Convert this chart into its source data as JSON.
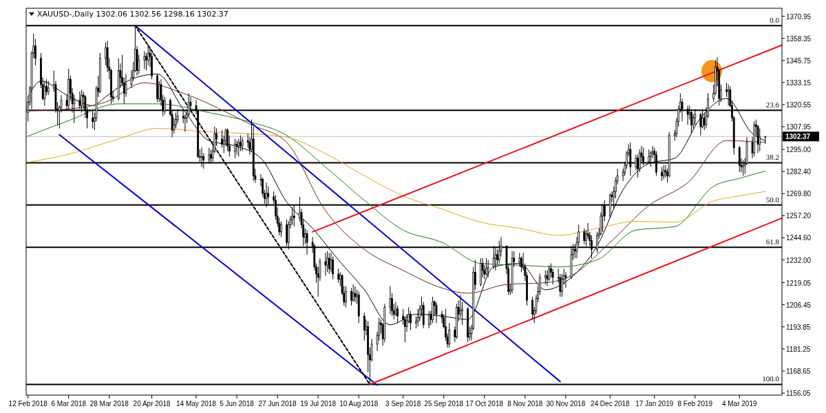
{
  "chart_data": {
    "type": "candlestick",
    "title": "XAUUSD-,Daily  1302.06 1302.56 1298.16 1302.37",
    "x": [
      "2018-02-12",
      "2018-02-13",
      "2018-02-14",
      "2018-02-15",
      "2018-02-16",
      "2018-02-19",
      "2018-02-20",
      "2018-02-21",
      "2018-02-22",
      "2018-02-23",
      "2018-02-26",
      "2018-02-27",
      "2018-02-28",
      "2018-03-01",
      "2018-03-02",
      "2018-03-05",
      "2018-03-06",
      "2018-03-07",
      "2018-03-08",
      "2018-03-09",
      "2018-03-12",
      "2018-03-13",
      "2018-03-14",
      "2018-03-15",
      "2018-03-16",
      "2018-03-19",
      "2018-03-20",
      "2018-03-21",
      "2018-03-22",
      "2018-03-23",
      "2018-03-26",
      "2018-03-27",
      "2018-03-28",
      "2018-03-29",
      "2018-03-30",
      "2018-04-02",
      "2018-04-03",
      "2018-04-04",
      "2018-04-05",
      "2018-04-06",
      "2018-04-09",
      "2018-04-10",
      "2018-04-11",
      "2018-04-12",
      "2018-04-13",
      "2018-04-16",
      "2018-04-17",
      "2018-04-18",
      "2018-04-19",
      "2018-04-20",
      "2018-04-23",
      "2018-04-24",
      "2018-04-25",
      "2018-04-26",
      "2018-04-27",
      "2018-04-30",
      "2018-05-01",
      "2018-05-02",
      "2018-05-03",
      "2018-05-04",
      "2018-05-07",
      "2018-05-08",
      "2018-05-09",
      "2018-05-10",
      "2018-05-11",
      "2018-05-14",
      "2018-05-15",
      "2018-05-16",
      "2018-05-17",
      "2018-05-18",
      "2018-05-21",
      "2018-05-22",
      "2018-05-23",
      "2018-05-24",
      "2018-05-25",
      "2018-05-28",
      "2018-05-29",
      "2018-05-30",
      "2018-05-31",
      "2018-06-01",
      "2018-06-04",
      "2018-06-05",
      "2018-06-06",
      "2018-06-07",
      "2018-06-08",
      "2018-06-11",
      "2018-06-12",
      "2018-06-13",
      "2018-06-14",
      "2018-06-15",
      "2018-06-18",
      "2018-06-19",
      "2018-06-20",
      "2018-06-21",
      "2018-06-22",
      "2018-06-25",
      "2018-06-26",
      "2018-06-27",
      "2018-06-28",
      "2018-06-29",
      "2018-07-02",
      "2018-07-03",
      "2018-07-04",
      "2018-07-05",
      "2018-07-06",
      "2018-07-09",
      "2018-07-10",
      "2018-07-11",
      "2018-07-12",
      "2018-07-13",
      "2018-07-16",
      "2018-07-17",
      "2018-07-18",
      "2018-07-19",
      "2018-07-20",
      "2018-07-23",
      "2018-07-24",
      "2018-07-25",
      "2018-07-26",
      "2018-07-27",
      "2018-07-30",
      "2018-07-31",
      "2018-08-01",
      "2018-08-02",
      "2018-08-03",
      "2018-08-06",
      "2018-08-07",
      "2018-08-08",
      "2018-08-09",
      "2018-08-10",
      "2018-08-13",
      "2018-08-14",
      "2018-08-15",
      "2018-08-16",
      "2018-08-17",
      "2018-08-20",
      "2018-08-21",
      "2018-08-22",
      "2018-08-23",
      "2018-08-24",
      "2018-08-27",
      "2018-08-28",
      "2018-08-29",
      "2018-08-30",
      "2018-08-31",
      "2018-09-03",
      "2018-09-04",
      "2018-09-05",
      "2018-09-06",
      "2018-09-07",
      "2018-09-10",
      "2018-09-11",
      "2018-09-12",
      "2018-09-13",
      "2018-09-14",
      "2018-09-17",
      "2018-09-18",
      "2018-09-19",
      "2018-09-20",
      "2018-09-21",
      "2018-09-24",
      "2018-09-25",
      "2018-09-26",
      "2018-09-27",
      "2018-09-28",
      "2018-10-01",
      "2018-10-02",
      "2018-10-03",
      "2018-10-04",
      "2018-10-05",
      "2018-10-08",
      "2018-10-09",
      "2018-10-10",
      "2018-10-11",
      "2018-10-12",
      "2018-10-15",
      "2018-10-16",
      "2018-10-17",
      "2018-10-18",
      "2018-10-19",
      "2018-10-22",
      "2018-10-23",
      "2018-10-24",
      "2018-10-25",
      "2018-10-26",
      "2018-10-29",
      "2018-10-30",
      "2018-10-31",
      "2018-11-01",
      "2018-11-02",
      "2018-11-05",
      "2018-11-06",
      "2018-11-07",
      "2018-11-08",
      "2018-11-09",
      "2018-11-12",
      "2018-11-13",
      "2018-11-14",
      "2018-11-15",
      "2018-11-16",
      "2018-11-19",
      "2018-11-20",
      "2018-11-21",
      "2018-11-22",
      "2018-11-23",
      "2018-11-26",
      "2018-11-27",
      "2018-11-28",
      "2018-11-29",
      "2018-11-30",
      "2018-12-03",
      "2018-12-04",
      "2018-12-05",
      "2018-12-06",
      "2018-12-07",
      "2018-12-10",
      "2018-12-11",
      "2018-12-12",
      "2018-12-13",
      "2018-12-14",
      "2018-12-17",
      "2018-12-18",
      "2018-12-19",
      "2018-12-20",
      "2018-12-21",
      "2018-12-24",
      "2018-12-25",
      "2018-12-26",
      "2018-12-27",
      "2018-12-28",
      "2018-12-31",
      "2019-01-01",
      "2019-01-02",
      "2019-01-03",
      "2019-01-04",
      "2019-01-07",
      "2019-01-08",
      "2019-01-09",
      "2019-01-10",
      "2019-01-11",
      "2019-01-14",
      "2019-01-15",
      "2019-01-16",
      "2019-01-17",
      "2019-01-18",
      "2019-01-21",
      "2019-01-22",
      "2019-01-23",
      "2019-01-24",
      "2019-01-25",
      "2019-01-28",
      "2019-01-29",
      "2019-01-30",
      "2019-01-31",
      "2019-02-01",
      "2019-02-04",
      "2019-02-05",
      "2019-02-06",
      "2019-02-07",
      "2019-02-08",
      "2019-02-11",
      "2019-02-12",
      "2019-02-13",
      "2019-02-14",
      "2019-02-15",
      "2019-02-18",
      "2019-02-19",
      "2019-02-20",
      "2019-02-21",
      "2019-02-22",
      "2019-02-25",
      "2019-02-26",
      "2019-02-27",
      "2019-02-28",
      "2019-03-01",
      "2019-03-04",
      "2019-03-05",
      "2019-03-06",
      "2019-03-07",
      "2019-03-08",
      "2019-03-11",
      "2019-03-12",
      "2019-03-13",
      "2019-03-14",
      "2019-03-15",
      "2019-03-18"
    ],
    "ohlc": [
      [
        1316,
        1325,
        1311,
        1322
      ],
      [
        1322,
        1331,
        1320,
        1330
      ],
      [
        1330,
        1351,
        1318,
        1350
      ],
      [
        1350,
        1361,
        1347,
        1354
      ],
      [
        1354,
        1358,
        1343,
        1347
      ],
      [
        1347,
        1350,
        1330,
        1332
      ],
      [
        1332,
        1336,
        1323,
        1324
      ],
      [
        1324,
        1334,
        1320,
        1331
      ],
      [
        1331,
        1335,
        1326,
        1328
      ],
      [
        1328,
        1334,
        1326,
        1330
      ],
      [
        1330,
        1340,
        1328,
        1332
      ],
      [
        1332,
        1334,
        1316,
        1318
      ],
      [
        1318,
        1322,
        1309,
        1317
      ],
      [
        1317,
        1320,
        1307,
        1319
      ],
      [
        1319,
        1326,
        1316,
        1323
      ],
      [
        1323,
        1326,
        1317,
        1320
      ],
      [
        1320,
        1341,
        1318,
        1335
      ],
      [
        1335,
        1337,
        1323,
        1327
      ],
      [
        1327,
        1330,
        1316,
        1321
      ],
      [
        1321,
        1326,
        1310,
        1323
      ],
      [
        1323,
        1328,
        1318,
        1320
      ],
      [
        1320,
        1329,
        1316,
        1326
      ],
      [
        1326,
        1328,
        1318,
        1325
      ],
      [
        1325,
        1326,
        1313,
        1317
      ],
      [
        1317,
        1319,
        1307,
        1313
      ],
      [
        1313,
        1318,
        1307,
        1311
      ],
      [
        1311,
        1316,
        1306,
        1313
      ],
      [
        1313,
        1331,
        1311,
        1330
      ],
      [
        1330,
        1337,
        1325,
        1328
      ],
      [
        1328,
        1350,
        1327,
        1347
      ],
      [
        1347,
        1356,
        1343,
        1353
      ],
      [
        1353,
        1357,
        1339,
        1342
      ],
      [
        1342,
        1347,
        1335,
        1340
      ],
      [
        1340,
        1341,
        1321,
        1325
      ],
      [
        1325,
        1328,
        1322,
        1324
      ],
      [
        1324,
        1347,
        1323,
        1340
      ],
      [
        1340,
        1344,
        1330,
        1336
      ],
      [
        1336,
        1349,
        1331,
        1333
      ],
      [
        1333,
        1336,
        1321,
        1327
      ],
      [
        1327,
        1338,
        1325,
        1332
      ],
      [
        1332,
        1340,
        1330,
        1336
      ],
      [
        1336,
        1345,
        1334,
        1340
      ],
      [
        1340,
        1365.6,
        1339,
        1352
      ],
      [
        1352,
        1354,
        1337,
        1340
      ],
      [
        1340,
        1349,
        1338,
        1346
      ],
      [
        1346,
        1351,
        1341,
        1348
      ],
      [
        1348,
        1350,
        1340,
        1346
      ],
      [
        1346,
        1355,
        1343,
        1350
      ],
      [
        1350,
        1353,
        1342,
        1348
      ],
      [
        1348,
        1350,
        1335,
        1337
      ],
      [
        1337,
        1338,
        1322,
        1324
      ],
      [
        1324,
        1334,
        1322,
        1332
      ],
      [
        1332,
        1335,
        1320,
        1323
      ],
      [
        1323,
        1326,
        1314,
        1317
      ],
      [
        1317,
        1325,
        1315,
        1323
      ],
      [
        1323,
        1324,
        1314,
        1315
      ],
      [
        1315,
        1317,
        1302,
        1306
      ],
      [
        1306,
        1313,
        1304,
        1309
      ],
      [
        1309,
        1316,
        1307,
        1312
      ],
      [
        1312,
        1318,
        1310,
        1314
      ],
      [
        1314,
        1318,
        1310,
        1313
      ],
      [
        1313,
        1315,
        1305,
        1313
      ],
      [
        1313,
        1318,
        1310,
        1315
      ],
      [
        1315,
        1327,
        1314,
        1322
      ],
      [
        1322,
        1325,
        1317,
        1320
      ],
      [
        1320,
        1323,
        1315,
        1317
      ],
      [
        1317,
        1318,
        1290,
        1291
      ],
      [
        1291,
        1295,
        1288,
        1291
      ],
      [
        1291,
        1296,
        1285,
        1291
      ],
      [
        1291,
        1293,
        1284,
        1289
      ],
      [
        1289,
        1296,
        1287,
        1292
      ],
      [
        1292,
        1295,
        1287,
        1290
      ],
      [
        1290,
        1297,
        1288,
        1294
      ],
      [
        1294,
        1308,
        1293,
        1304
      ],
      [
        1304,
        1307,
        1297,
        1301
      ],
      [
        1301,
        1306,
        1296,
        1298
      ],
      [
        1298,
        1303,
        1293,
        1300
      ],
      [
        1300,
        1307,
        1297,
        1306
      ],
      [
        1306,
        1307,
        1294,
        1297
      ],
      [
        1297,
        1303,
        1291,
        1294
      ],
      [
        1294,
        1301,
        1290,
        1298
      ],
      [
        1298,
        1300,
        1292,
        1297
      ],
      [
        1297,
        1301,
        1291,
        1299
      ],
      [
        1299,
        1303,
        1294,
        1297
      ],
      [
        1297,
        1302,
        1294,
        1300
      ],
      [
        1300,
        1304,
        1296,
        1299
      ],
      [
        1299,
        1302,
        1292,
        1295
      ],
      [
        1295,
        1312,
        1294,
        1301
      ],
      [
        1301,
        1308,
        1277,
        1280
      ],
      [
        1280,
        1284,
        1276,
        1278
      ],
      [
        1278,
        1281,
        1274,
        1278
      ],
      [
        1278,
        1279,
        1268,
        1270
      ],
      [
        1270,
        1272,
        1264,
        1267
      ],
      [
        1267,
        1276,
        1262,
        1270
      ],
      [
        1270,
        1274,
        1263,
        1268
      ],
      [
        1268,
        1271,
        1264,
        1266
      ],
      [
        1266,
        1269,
        1255,
        1257
      ],
      [
        1257,
        1262,
        1251,
        1253
      ],
      [
        1253,
        1256,
        1246,
        1248
      ],
      [
        1248,
        1254,
        1245,
        1252
      ],
      [
        1252,
        1255,
        1240,
        1242
      ],
      [
        1242,
        1254,
        1238,
        1252
      ],
      [
        1252,
        1257,
        1250,
        1255
      ],
      [
        1255,
        1262,
        1252,
        1257
      ],
      [
        1257,
        1263,
        1251,
        1256
      ],
      [
        1256,
        1268,
        1254,
        1259
      ],
      [
        1259,
        1261,
        1250,
        1252
      ],
      [
        1252,
        1255,
        1240,
        1245
      ],
      [
        1245,
        1250,
        1241,
        1247
      ],
      [
        1247,
        1249,
        1235,
        1242
      ],
      [
        1242,
        1245,
        1236,
        1240
      ],
      [
        1240,
        1241,
        1226,
        1228
      ],
      [
        1228,
        1230,
        1219,
        1224
      ],
      [
        1224,
        1228,
        1211,
        1222
      ],
      [
        1222,
        1233,
        1220,
        1231
      ],
      [
        1231,
        1236,
        1223,
        1229
      ],
      [
        1229,
        1237,
        1225,
        1233
      ],
      [
        1233,
        1236,
        1224,
        1227
      ],
      [
        1227,
        1236,
        1225,
        1232
      ],
      [
        1232,
        1234,
        1221,
        1224
      ],
      [
        1224,
        1227,
        1219,
        1221
      ],
      [
        1221,
        1225,
        1217,
        1223
      ],
      [
        1223,
        1224,
        1212,
        1213
      ],
      [
        1213,
        1217,
        1206,
        1208
      ],
      [
        1208,
        1217,
        1205,
        1214
      ],
      [
        1214,
        1216,
        1206,
        1209
      ],
      [
        1209,
        1218,
        1208,
        1213
      ],
      [
        1213,
        1217,
        1208,
        1211
      ],
      [
        1211,
        1215,
        1207,
        1212
      ],
      [
        1212,
        1214,
        1196,
        1200
      ],
      [
        1200,
        1202,
        1186,
        1192
      ],
      [
        1192,
        1198,
        1189,
        1194
      ],
      [
        1194,
        1197,
        1168,
        1178
      ],
      [
        1178,
        1182,
        1161,
        1175
      ],
      [
        1175,
        1187,
        1174,
        1184
      ],
      [
        1184,
        1191,
        1180,
        1189
      ],
      [
        1189,
        1199,
        1186,
        1196
      ],
      [
        1196,
        1198,
        1190,
        1195
      ],
      [
        1195,
        1196,
        1183,
        1187
      ],
      [
        1187,
        1207,
        1185,
        1205
      ],
      [
        1205,
        1217,
        1201,
        1210
      ],
      [
        1210,
        1213,
        1200,
        1203
      ],
      [
        1203,
        1207,
        1198,
        1201
      ],
      [
        1201,
        1208,
        1200,
        1204
      ],
      [
        1204,
        1206,
        1196,
        1200
      ],
      [
        1200,
        1204,
        1195,
        1198
      ],
      [
        1198,
        1200,
        1185,
        1194
      ],
      [
        1194,
        1201,
        1191,
        1197
      ],
      [
        1197,
        1205,
        1196,
        1201
      ],
      [
        1201,
        1203,
        1192,
        1196
      ],
      [
        1196,
        1200,
        1193,
        1197
      ],
      [
        1197,
        1204,
        1194,
        1199
      ],
      [
        1199,
        1206,
        1197,
        1204
      ],
      [
        1204,
        1211,
        1200,
        1206
      ],
      [
        1206,
        1208,
        1193,
        1195
      ],
      [
        1195,
        1203,
        1193,
        1201
      ],
      [
        1201,
        1203,
        1195,
        1198
      ],
      [
        1198,
        1211,
        1196,
        1208
      ],
      [
        1208,
        1209,
        1200,
        1206
      ],
      [
        1206,
        1208,
        1196,
        1201
      ],
      [
        1201,
        1203,
        1196,
        1199
      ],
      [
        1199,
        1201,
        1193,
        1194
      ],
      [
        1194,
        1204,
        1186,
        1188
      ],
      [
        1188,
        1190,
        1182,
        1184
      ],
      [
        1184,
        1196,
        1182,
        1192
      ],
      [
        1192,
        1194,
        1185,
        1188
      ],
      [
        1188,
        1207,
        1187,
        1205
      ],
      [
        1205,
        1209,
        1197,
        1201
      ],
      [
        1201,
        1212,
        1199,
        1203
      ],
      [
        1203,
        1208,
        1195,
        1204
      ],
      [
        1204,
        1205,
        1185,
        1188
      ],
      [
        1188,
        1194,
        1186,
        1190
      ],
      [
        1190,
        1195,
        1186,
        1193
      ],
      [
        1193,
        1228,
        1192,
        1225
      ],
      [
        1225,
        1232,
        1215,
        1218
      ],
      [
        1218,
        1233,
        1217,
        1230
      ],
      [
        1230,
        1233,
        1222,
        1226
      ],
      [
        1226,
        1229,
        1221,
        1224
      ],
      [
        1224,
        1233,
        1223,
        1227
      ],
      [
        1227,
        1232,
        1222,
        1228
      ],
      [
        1228,
        1240,
        1227,
        1233
      ],
      [
        1233,
        1239,
        1226,
        1235
      ],
      [
        1235,
        1238,
        1229,
        1232
      ],
      [
        1232,
        1243,
        1230,
        1237
      ],
      [
        1237,
        1245,
        1234,
        1240
      ],
      [
        1240,
        1240,
        1224,
        1227
      ],
      [
        1227,
        1229,
        1212,
        1214
      ],
      [
        1214,
        1218,
        1212,
        1215
      ],
      [
        1215,
        1237,
        1213,
        1233
      ],
      [
        1233,
        1237,
        1228,
        1231
      ],
      [
        1231,
        1236,
        1228,
        1233
      ],
      [
        1233,
        1234,
        1225,
        1228
      ],
      [
        1228,
        1236,
        1226,
        1228
      ],
      [
        1228,
        1230,
        1220,
        1223
      ],
      [
        1223,
        1225,
        1206,
        1209
      ],
      [
        1209,
        1211,
        1198,
        1201
      ],
      [
        1201,
        1205,
        1196,
        1203
      ],
      [
        1203,
        1212,
        1201,
        1210
      ],
      [
        1210,
        1217,
        1208,
        1214
      ],
      [
        1214,
        1224,
        1212,
        1222
      ],
      [
        1222,
        1226,
        1218,
        1223
      ],
      [
        1223,
        1226,
        1217,
        1221
      ],
      [
        1221,
        1229,
        1220,
        1227
      ],
      [
        1227,
        1230,
        1222,
        1225
      ],
      [
        1225,
        1227,
        1218,
        1222
      ],
      [
        1222,
        1227,
        1219,
        1222
      ],
      [
        1222,
        1224,
        1211,
        1214
      ],
      [
        1214,
        1224,
        1211,
        1221
      ],
      [
        1221,
        1227,
        1218,
        1223
      ],
      [
        1223,
        1225,
        1216,
        1222
      ],
      [
        1222,
        1240,
        1221,
        1235
      ],
      [
        1235,
        1241,
        1232,
        1238
      ],
      [
        1238,
        1241,
        1233,
        1237
      ],
      [
        1237,
        1245,
        1233,
        1242
      ],
      [
        1242,
        1252,
        1240,
        1248
      ],
      [
        1248,
        1250,
        1241,
        1243
      ],
      [
        1243,
        1249,
        1240,
        1247
      ],
      [
        1247,
        1253,
        1244,
        1246
      ],
      [
        1246,
        1248,
        1240,
        1243
      ],
      [
        1243,
        1246,
        1233,
        1238
      ],
      [
        1238,
        1248,
        1236,
        1246
      ],
      [
        1246,
        1250,
        1244,
        1247
      ],
      [
        1247,
        1259,
        1246,
        1257
      ],
      [
        1257,
        1264,
        1248,
        1263
      ],
      [
        1263,
        1266,
        1254,
        1257
      ],
      [
        1257,
        1270,
        1256,
        1269
      ],
      [
        1269,
        1271,
        1265,
        1268
      ],
      [
        1268,
        1274,
        1261,
        1271
      ],
      [
        1271,
        1279,
        1267,
        1277
      ],
      [
        1277,
        1284,
        1275,
        1280
      ],
      [
        1280,
        1284,
        1277,
        1282
      ],
      [
        1282,
        1288,
        1280,
        1286
      ],
      [
        1286,
        1294,
        1284,
        1293
      ],
      [
        1293,
        1298,
        1291,
        1295
      ],
      [
        1295,
        1299,
        1280,
        1285
      ],
      [
        1285,
        1292,
        1283,
        1290
      ],
      [
        1290,
        1292,
        1279,
        1284
      ],
      [
        1284,
        1295,
        1282,
        1293
      ],
      [
        1293,
        1297,
        1288,
        1291
      ],
      [
        1291,
        1296,
        1286,
        1288
      ],
      [
        1288,
        1295,
        1287,
        1291
      ],
      [
        1291,
        1294,
        1285,
        1293
      ],
      [
        1293,
        1297,
        1290,
        1294
      ],
      [
        1294,
        1296,
        1288,
        1292
      ],
      [
        1292,
        1294,
        1280,
        1282
      ],
      [
        1282,
        1285,
        1277,
        1280
      ],
      [
        1280,
        1286,
        1278,
        1283
      ],
      [
        1283,
        1286,
        1279,
        1282
      ],
      [
        1282,
        1284,
        1276,
        1280
      ],
      [
        1280,
        1305,
        1279,
        1303
      ],
      [
        1303,
        1306,
        1300,
        1304
      ],
      [
        1304,
        1313,
        1302,
        1311
      ],
      [
        1311,
        1320,
        1308,
        1318
      ],
      [
        1318,
        1327,
        1316,
        1322
      ],
      [
        1322,
        1324,
        1311,
        1318
      ],
      [
        1318,
        1320,
        1309,
        1315
      ],
      [
        1315,
        1320,
        1312,
        1316
      ],
      [
        1316,
        1318,
        1304,
        1309
      ],
      [
        1309,
        1315,
        1307,
        1313
      ],
      [
        1313,
        1318,
        1309,
        1315
      ],
      [
        1315,
        1316,
        1303,
        1308
      ],
      [
        1308,
        1318,
        1307,
        1313
      ],
      [
        1313,
        1316,
        1306,
        1309
      ],
      [
        1309,
        1319,
        1307,
        1314
      ],
      [
        1314,
        1327,
        1313,
        1324
      ],
      [
        1324,
        1332,
        1322,
        1327
      ],
      [
        1327,
        1346,
        1326,
        1342
      ],
      [
        1342,
        1347.5,
        1331,
        1340
      ],
      [
        1340,
        1341,
        1320,
        1324
      ],
      [
        1324,
        1332,
        1322,
        1329
      ],
      [
        1329,
        1333,
        1325,
        1328
      ],
      [
        1328,
        1332,
        1320,
        1329
      ],
      [
        1329,
        1331,
        1319,
        1320
      ],
      [
        1320,
        1323,
        1311,
        1313
      ],
      [
        1313,
        1314,
        1292,
        1296
      ],
      [
        1296,
        1297,
        1282,
        1286
      ],
      [
        1286,
        1290,
        1282,
        1285
      ],
      [
        1285,
        1289,
        1280,
        1286
      ],
      [
        1286,
        1290,
        1281,
        1287
      ],
      [
        1287,
        1302,
        1286,
        1299
      ],
      [
        1299,
        1302,
        1290,
        1293
      ],
      [
        1293,
        1311,
        1291,
        1309
      ],
      [
        1309,
        1312,
        1303,
        1308
      ],
      [
        1308,
        1309,
        1293,
        1298
      ],
      [
        1298,
        1307,
        1294,
        1302
      ],
      [
        1302.06,
        1302.56,
        1298.16,
        1302.37
      ]
    ],
    "series": [
      {
        "type": "line",
        "color": "#000000",
        "x": [
          "2018-02-12",
          "2018-02-19",
          "2018-03-05",
          "2018-03-19",
          "2018-03-26",
          "2018-04-09",
          "2018-04-23",
          "2018-05-07",
          "2018-05-21",
          "2018-06-04",
          "2018-06-18",
          "2018-07-02",
          "2018-07-16",
          "2018-07-30",
          "2018-08-13",
          "2018-08-27",
          "2018-09-10",
          "2018-09-24",
          "2018-10-08",
          "2018-10-22",
          "2018-11-05",
          "2018-11-19",
          "2018-12-03",
          "2018-12-17",
          "2018-12-31",
          "2019-01-14",
          "2019-01-28",
          "2019-02-11",
          "2019-02-25",
          "2019-03-11",
          "2019-03-18"
        ],
        "values": [
          1325,
          1334,
          1326,
          1320,
          1325,
          1335,
          1338,
          1318,
          1300,
          1297,
          1290,
          1265,
          1250,
          1232,
          1215,
          1195,
          1201,
          1200,
          1198,
          1228,
          1230,
          1215,
          1222,
          1240,
          1272,
          1287,
          1290,
          1313,
          1324,
          1304,
          1300
        ]
      },
      {
        "type": "line",
        "color": "#6b2a1a",
        "x": [
          "2018-02-12",
          "2018-03-05",
          "2018-03-26",
          "2018-04-16",
          "2018-05-07",
          "2018-06-13",
          "2018-07-02",
          "2018-07-23",
          "2018-08-13",
          "2018-09-03",
          "2018-09-24",
          "2018-10-08",
          "2018-10-29",
          "2018-11-19",
          "2018-12-03",
          "2018-12-24",
          "2019-01-14",
          "2019-02-04",
          "2019-02-25",
          "2019-03-18"
        ],
        "values": [
          1317,
          1318,
          1322,
          1333,
          1327,
          1309,
          1299,
          1260,
          1238,
          1226,
          1216,
          1213,
          1218,
          1219,
          1223,
          1242,
          1263,
          1276,
          1300,
          1299
        ]
      },
      {
        "type": "line",
        "color": "#1f7a1f",
        "x": [
          "2018-02-12",
          "2018-03-05",
          "2018-04-02",
          "2018-04-23",
          "2018-05-21",
          "2018-06-11",
          "2018-07-02",
          "2018-07-23",
          "2018-08-13",
          "2018-09-03",
          "2018-09-24",
          "2018-10-15",
          "2018-11-05",
          "2018-11-26",
          "2018-12-17",
          "2019-01-07",
          "2019-01-28",
          "2019-02-18",
          "2019-03-04",
          "2019-03-18"
        ],
        "values": [
          1302.6,
          1311,
          1321,
          1321,
          1316,
          1311,
          1303,
          1285,
          1266,
          1249,
          1242,
          1230,
          1229,
          1228,
          1232,
          1249,
          1251,
          1274,
          1278.5,
          1282.7
        ]
      },
      {
        "type": "line",
        "color": "#e0a526",
        "x": [
          "2018-02-12",
          "2018-03-05",
          "2018-04-02",
          "2018-04-23",
          "2018-05-21",
          "2018-06-11",
          "2018-07-02",
          "2018-07-23",
          "2018-08-13",
          "2018-09-03",
          "2018-09-24",
          "2018-10-15",
          "2018-11-05",
          "2018-11-26",
          "2018-12-17",
          "2019-01-07",
          "2019-01-28",
          "2019-02-18",
          "2019-03-04",
          "2019-03-18"
        ],
        "values": [
          1287.7,
          1292,
          1301,
          1307,
          1305,
          1304,
          1302,
          1292.6,
          1280,
          1268.5,
          1261,
          1253.5,
          1250,
          1246,
          1250,
          1254,
          1253.5,
          1265.6,
          1268.5,
          1271
        ]
      },
      {
        "type": "line",
        "color": "#0000cd",
        "x": [
          "2018-04-11",
          "2018-11-27"
        ],
        "values": [
          1365.6,
          1162.6
        ]
      },
      {
        "type": "line",
        "color": "#0000cd",
        "x": [
          "2018-03-01",
          "2018-08-20"
        ],
        "values": [
          1303.4,
          1160.6
        ]
      },
      {
        "type": "line",
        "color": "#000000",
        "line_style": "dashed",
        "x": [
          "2018-04-11",
          "2018-08-16"
        ],
        "values": [
          1365.6,
          1161.0
        ]
      },
      {
        "type": "line",
        "color": "#e8141b",
        "x": [
          "2018-07-16",
          "2019-03-27"
        ],
        "values": [
          1248,
          1354.5
        ]
      },
      {
        "type": "line",
        "color": "#e8141b",
        "x": [
          "2018-08-16",
          "2019-03-27"
        ],
        "values": [
          1161.0,
          1255.8
        ]
      }
    ],
    "xlim": [
      "2018-02-11",
      "2019-03-27"
    ],
    "xticks": [
      {
        "value": "2018-02-12",
        "label": "12 Feb 2018"
      },
      {
        "value": "2018-03-06",
        "label": "6 Mar 2018"
      },
      {
        "value": "2018-03-28",
        "label": "28 Mar 2018"
      },
      {
        "value": "2018-04-20",
        "label": "20 Apr 2018"
      },
      {
        "value": "2018-05-14",
        "label": "14 May 2018"
      },
      {
        "value": "2018-06-05",
        "label": "5 Jun 2018"
      },
      {
        "value": "2018-06-27",
        "label": "27 Jun 2018"
      },
      {
        "value": "2018-07-19",
        "label": "19 Jul 2018"
      },
      {
        "value": "2018-08-10",
        "label": "10 Aug 2018"
      },
      {
        "value": "2018-09-03",
        "label": "3 Sep 2018"
      },
      {
        "value": "2018-09-25",
        "label": "25 Sep 2018"
      },
      {
        "value": "2018-10-17",
        "label": "17 Oct 2018"
      },
      {
        "value": "2018-11-08",
        "label": "8 Nov 2018"
      },
      {
        "value": "2018-11-30",
        "label": "30 Nov 2018"
      },
      {
        "value": "2018-12-24",
        "label": "24 Dec 2018"
      },
      {
        "value": "2019-01-17",
        "label": "17 Jan 2019"
      },
      {
        "value": "2019-02-08",
        "label": "8 Feb 2019"
      },
      {
        "value": "2019-03-04",
        "label": "4 Mar 2019"
      }
    ],
    "ylim": [
      1154.9,
      1375.5
    ],
    "yticks": [
      1370.95,
      1358.35,
      1345.75,
      1333.15,
      {
        "value": 1320.55,
        "label": "1320.55"
      },
      1307.95,
      {
        "value": 1295,
        "label": "1295.00"
      },
      {
        "value": 1282.4,
        "label": "1282.40"
      },
      {
        "value": 1269.8,
        "label": "1269.80"
      },
      {
        "value": 1257.2,
        "label": "1257.20"
      },
      {
        "value": 1244.6,
        "label": "1244.60"
      },
      {
        "value": 1232,
        "label": "1232.00"
      },
      1219.05,
      1206.45,
      1193.85,
      1181.25,
      1168.65,
      1156.05
    ],
    "annotations": [
      {
        "text": "0.0",
        "x": "2019-03-27",
        "y": 1365.6
      },
      {
        "text": "23.6",
        "x": "2019-03-27",
        "y": 1317.3
      },
      {
        "text": "38.2",
        "x": "2019-03-27",
        "y": 1287.4
      },
      {
        "text": "50.0",
        "x": "2019-03-27",
        "y": 1263.3
      },
      {
        "text": "61.8",
        "x": "2019-03-27",
        "y": 1239.2
      },
      {
        "text": "100.0",
        "x": "2019-03-27",
        "y": 1161.0
      }
    ],
    "ref_lines": [
      {
        "axis": "y",
        "value": 1365.6,
        "color": "#000000"
      },
      {
        "axis": "y",
        "value": 1317.3,
        "color": "#000000"
      },
      {
        "axis": "y",
        "value": 1287.4,
        "color": "#000000"
      },
      {
        "axis": "y",
        "value": 1263.3,
        "color": "#000000"
      },
      {
        "axis": "y",
        "value": 1239.2,
        "color": "#000000"
      },
      {
        "axis": "y",
        "value": 1161.0,
        "color": "#000000"
      },
      {
        "axis": "y",
        "value": 1302.37,
        "label": "1302.37",
        "color": "#c0c0c0"
      }
    ]
  }
}
